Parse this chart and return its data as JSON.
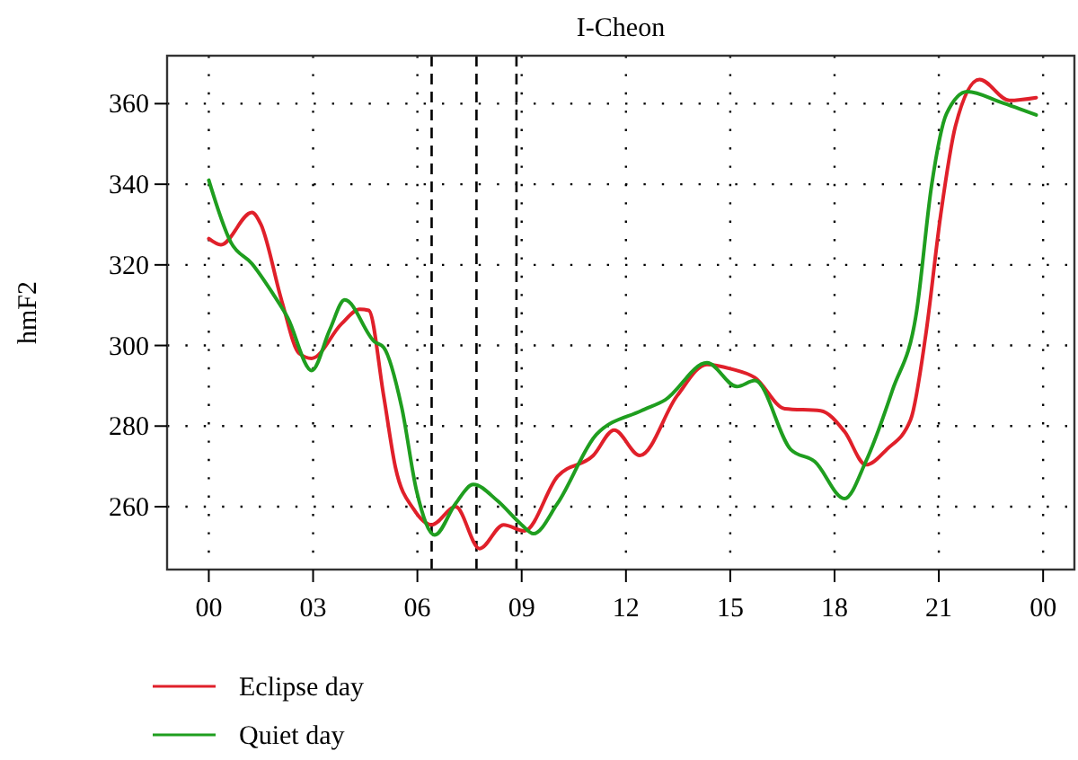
{
  "chart_data": {
    "type": "line",
    "title": "I-Cheon",
    "ylabel": "hmF2",
    "xlim": [
      -1.2,
      24.9
    ],
    "ylim": [
      244.4,
      371.9
    ],
    "xticks": [
      {
        "value": 0,
        "label": "00"
      },
      {
        "value": 3,
        "label": "03"
      },
      {
        "value": 6,
        "label": "06"
      },
      {
        "value": 9,
        "label": "09"
      },
      {
        "value": 12,
        "label": "12"
      },
      {
        "value": 15,
        "label": "15"
      },
      {
        "value": 18,
        "label": "18"
      },
      {
        "value": 21,
        "label": "21"
      },
      {
        "value": 24,
        "label": "00"
      }
    ],
    "yticks": [
      260,
      280,
      300,
      320,
      340,
      360
    ],
    "grid": true,
    "legend": "bottom left",
    "line_style": "solid",
    "marker": "none",
    "ref_lines": [
      {
        "axis": "x",
        "value": 6.41,
        "label": null,
        "color": "#000000",
        "line_style": "dashed"
      },
      {
        "axis": "x",
        "value": 7.7,
        "label": null,
        "color": "#000000",
        "line_style": "dashed"
      },
      {
        "axis": "x",
        "value": 8.85,
        "label": null,
        "color": "#000000",
        "line_style": "dashed"
      }
    ],
    "series": [
      {
        "name": "Eclipse day",
        "color": "#e0202a",
        "x": [
          0,
          0.35,
          1.24,
          1.5,
          2.1,
          2.6,
          2.96,
          3.82,
          4.34,
          4.6,
          5.03,
          5.37,
          5.9,
          6.41,
          7.1,
          7.79,
          8.48,
          9.08,
          10.03,
          11.06,
          11.66,
          12.4,
          13.47,
          14.33,
          15.02,
          15.71,
          16.57,
          17.6,
          18.29,
          18.9,
          19.5,
          20.19,
          20.62,
          21.05,
          21.48,
          22.17,
          23.03,
          23.8
        ],
        "values": [
          326.5,
          325,
          333,
          330,
          311,
          298,
          296.8,
          305.4,
          309,
          308.7,
          287.5,
          269.7,
          259.3,
          255.5,
          260,
          249.6,
          255.5,
          254,
          267.5,
          272.7,
          279,
          272.7,
          287.5,
          295.3,
          294.2,
          292,
          284.3,
          283.8,
          278.6,
          270.4,
          274.2,
          281.6,
          302.4,
          332.2,
          354.5,
          366,
          360.8,
          361.5
        ]
      },
      {
        "name": "Quiet day",
        "color": "#1f9e1f",
        "x": [
          0,
          0.64,
          1.24,
          1.84,
          2.27,
          2.96,
          3.48,
          3.91,
          4.77,
          5.03,
          5.55,
          5.98,
          6.5,
          7.1,
          7.61,
          8.3,
          9.0,
          9.34,
          10.03,
          11.15,
          12.44,
          13.13,
          14.33,
          15.19,
          15.71,
          16.74,
          17.43,
          18.29,
          18.9,
          19.67,
          20.36,
          20.79,
          21.22,
          21.82,
          22.77,
          23.8
        ],
        "values": [
          341,
          325.5,
          320.3,
          312.9,
          306.9,
          293.8,
          303.9,
          311.3,
          300.9,
          299.5,
          284.6,
          263.8,
          253,
          260.8,
          265.5,
          261.5,
          255.5,
          253.3,
          260.8,
          277.9,
          283.8,
          286.5,
          295.7,
          289.8,
          291.3,
          274.2,
          271.2,
          262,
          271.2,
          289,
          308.4,
          339.6,
          357.5,
          363,
          360.4,
          357.2
        ]
      }
    ]
  }
}
